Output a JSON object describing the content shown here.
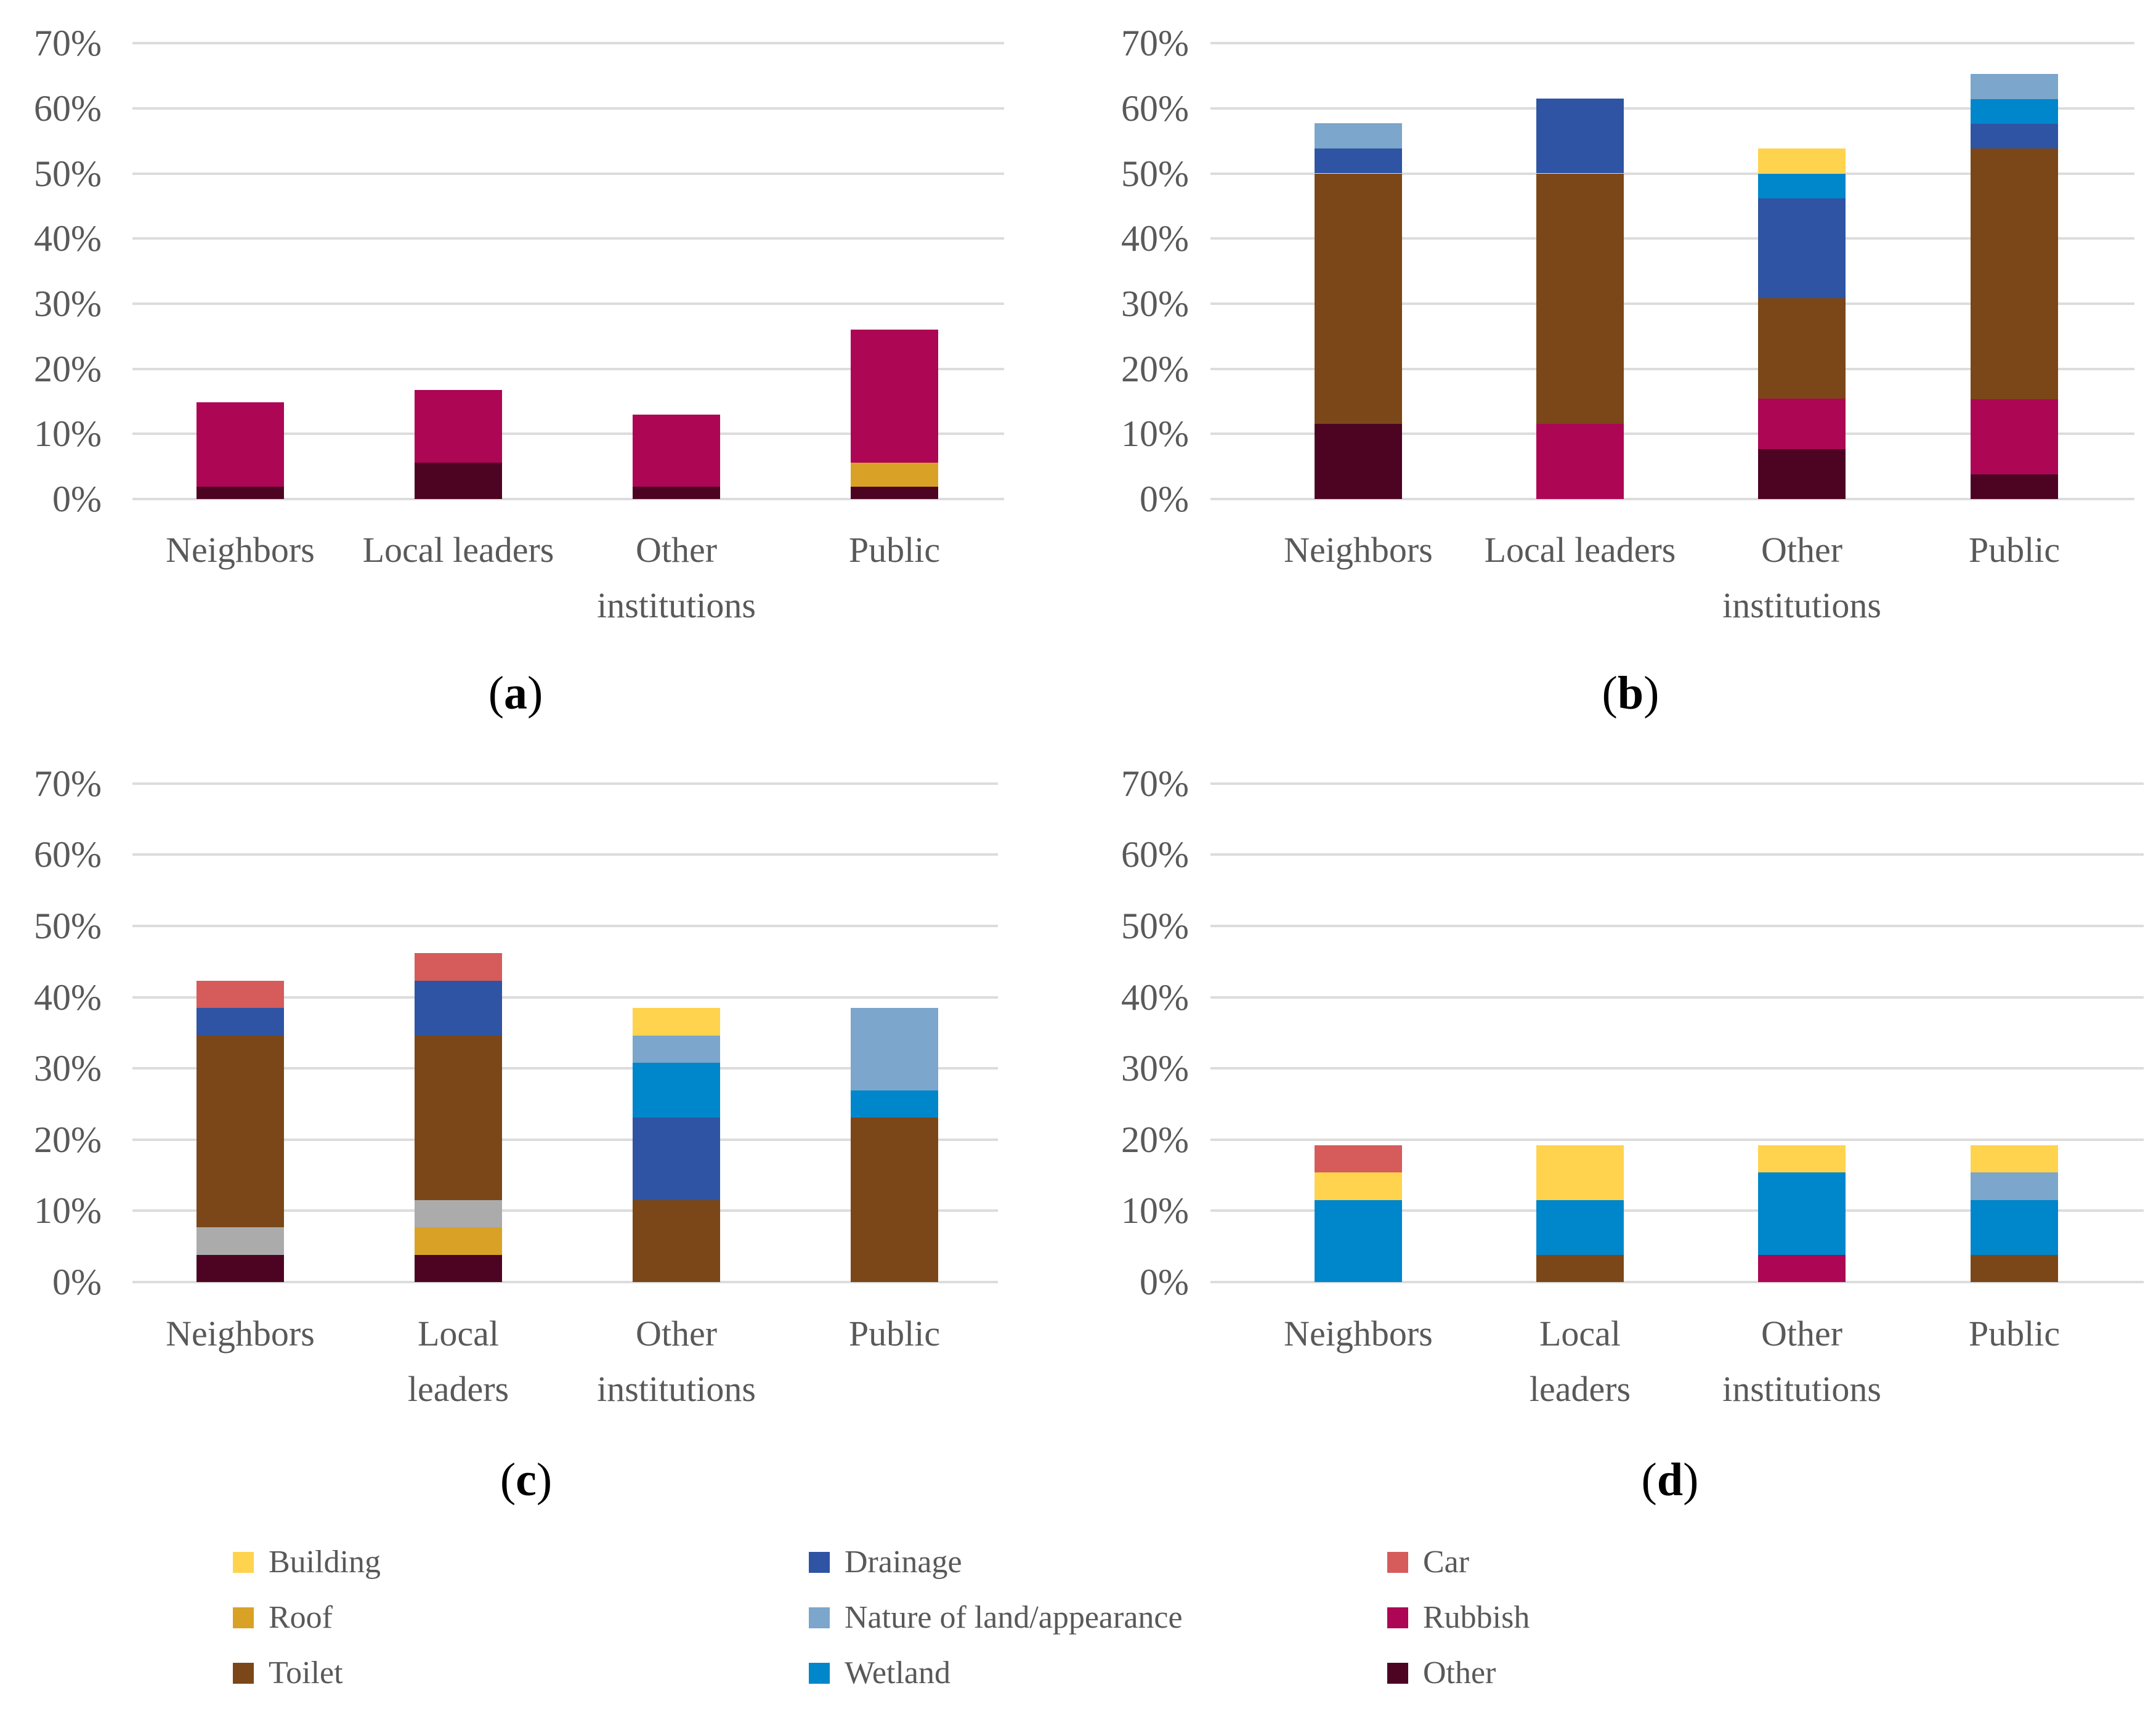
{
  "figure": {
    "background": "#FFFFFF",
    "text_color": "#595959",
    "gridline_color": "#DCDCDC",
    "y_tick_labels": [
      "0%",
      "10%",
      "20%",
      "30%",
      "40%",
      "50%",
      "60%",
      "70%"
    ]
  },
  "colors": {
    "Building": "#FFD34D",
    "Roof": "#D9A226",
    "Toilet": "#7B4718",
    "Drainage": "#2E54A3",
    "Nature of land/appearance": "#7CA6CB",
    "Wetland": "#0086CB",
    "Car": "#D65B5B",
    "Rubbish": "#AC0654",
    "Other": "#4C0422",
    "Unlabeled (gray)": "#ABABAB"
  },
  "chart_data": [
    {
      "id": "a",
      "type": "bar",
      "stacked": true,
      "caption_letter": "a",
      "ylim": [
        0,
        70
      ],
      "yticks_pct": [
        0,
        10,
        20,
        30,
        40,
        50,
        60,
        70
      ],
      "grid": true,
      "categories": [
        "Neighbors",
        "Local leaders",
        "Other institutions",
        "Public"
      ],
      "category_lines": [
        [
          "Neighbors"
        ],
        [
          "Local leaders"
        ],
        [
          "Other",
          "institutions"
        ],
        [
          "Public"
        ]
      ],
      "units": "percent, segments listed bottom to top",
      "bars": [
        {
          "category": "Neighbors",
          "segments": [
            {
              "label": "Other",
              "value": 1.9
            },
            {
              "label": "Rubbish",
              "value": 13.0
            }
          ]
        },
        {
          "category": "Local leaders",
          "segments": [
            {
              "label": "Other",
              "value": 5.6
            },
            {
              "label": "Rubbish",
              "value": 11.1
            }
          ]
        },
        {
          "category": "Other institutions",
          "segments": [
            {
              "label": "Other",
              "value": 1.9
            },
            {
              "label": "Rubbish",
              "value": 11.1
            }
          ]
        },
        {
          "category": "Public",
          "segments": [
            {
              "label": "Other",
              "value": 1.9
            },
            {
              "label": "Roof",
              "value": 3.7
            },
            {
              "label": "Rubbish",
              "value": 20.4
            }
          ]
        }
      ]
    },
    {
      "id": "b",
      "type": "bar",
      "stacked": true,
      "caption_letter": "b",
      "ylim": [
        0,
        70
      ],
      "yticks_pct": [
        0,
        10,
        20,
        30,
        40,
        50,
        60,
        70
      ],
      "grid": true,
      "categories": [
        "Neighbors",
        "Local leaders",
        "Other institutions",
        "Public"
      ],
      "category_lines": [
        [
          "Neighbors"
        ],
        [
          "Local leaders"
        ],
        [
          "Other",
          "institutions"
        ],
        [
          "Public"
        ]
      ],
      "units": "percent, segments listed bottom to top",
      "bars": [
        {
          "category": "Neighbors",
          "segments": [
            {
              "label": "Other",
              "value": 11.5
            },
            {
              "label": "Toilet",
              "value": 38.5
            },
            {
              "label": "Drainage",
              "value": 3.8
            },
            {
              "label": "Nature of land/appearance",
              "value": 3.9
            }
          ]
        },
        {
          "category": "Local leaders",
          "segments": [
            {
              "label": "Rubbish",
              "value": 11.5
            },
            {
              "label": "Toilet",
              "value": 38.5
            },
            {
              "label": "Drainage",
              "value": 11.5
            }
          ]
        },
        {
          "category": "Other institutions",
          "segments": [
            {
              "label": "Other",
              "value": 7.7
            },
            {
              "label": "Rubbish",
              "value": 7.7
            },
            {
              "label": "Toilet",
              "value": 15.4
            },
            {
              "label": "Drainage",
              "value": 15.4
            },
            {
              "label": "Wetland",
              "value": 3.8
            },
            {
              "label": "Building",
              "value": 3.8
            }
          ]
        },
        {
          "category": "Public",
          "segments": [
            {
              "label": "Other",
              "value": 3.8
            },
            {
              "label": "Rubbish",
              "value": 11.5
            },
            {
              "label": "Toilet",
              "value": 38.5
            },
            {
              "label": "Drainage",
              "value": 3.8
            },
            {
              "label": "Wetland",
              "value": 3.8
            },
            {
              "label": "Nature of land/appearance",
              "value": 3.9
            }
          ]
        }
      ]
    },
    {
      "id": "c",
      "type": "bar",
      "stacked": true,
      "caption_letter": "c",
      "ylim": [
        0,
        70
      ],
      "yticks_pct": [
        0,
        10,
        20,
        30,
        40,
        50,
        60,
        70
      ],
      "grid": true,
      "categories": [
        "Neighbors",
        "Local leaders",
        "Other institutions",
        "Public"
      ],
      "category_lines": [
        [
          "Neighbors"
        ],
        [
          "Local",
          "leaders"
        ],
        [
          "Other",
          "institutions"
        ],
        [
          "Public"
        ]
      ],
      "units": "percent, segments listed bottom to top",
      "bars": [
        {
          "category": "Neighbors",
          "segments": [
            {
              "label": "Other",
              "value": 3.8
            },
            {
              "label": "Unlabeled (gray)",
              "value": 3.9
            },
            {
              "label": "Toilet",
              "value": 26.9
            },
            {
              "label": "Drainage",
              "value": 3.9
            },
            {
              "label": "Car",
              "value": 3.8
            }
          ]
        },
        {
          "category": "Local leaders",
          "segments": [
            {
              "label": "Other",
              "value": 3.8
            },
            {
              "label": "Roof",
              "value": 3.9
            },
            {
              "label": "Unlabeled (gray)",
              "value": 3.8
            },
            {
              "label": "Toilet",
              "value": 23.1
            },
            {
              "label": "Drainage",
              "value": 7.7
            },
            {
              "label": "Car",
              "value": 3.9
            }
          ]
        },
        {
          "category": "Other institutions",
          "segments": [
            {
              "label": "Toilet",
              "value": 11.5
            },
            {
              "label": "Drainage",
              "value": 11.6
            },
            {
              "label": "Wetland",
              "value": 7.7
            },
            {
              "label": "Nature of land/appearance",
              "value": 3.8
            },
            {
              "label": "Building",
              "value": 3.9
            }
          ]
        },
        {
          "category": "Public",
          "segments": [
            {
              "label": "Toilet",
              "value": 23.1
            },
            {
              "label": "Wetland",
              "value": 3.8
            },
            {
              "label": "Nature of land/appearance",
              "value": 11.6
            }
          ]
        }
      ]
    },
    {
      "id": "d",
      "type": "bar",
      "stacked": true,
      "caption_letter": "d",
      "ylim": [
        0,
        70
      ],
      "yticks_pct": [
        0,
        10,
        20,
        30,
        40,
        50,
        60,
        70
      ],
      "grid": true,
      "categories": [
        "Neighbors",
        "Local leaders",
        "Other institutions",
        "Public"
      ],
      "category_lines": [
        [
          "Neighbors"
        ],
        [
          "Local",
          "leaders"
        ],
        [
          "Other",
          "institutions"
        ],
        [
          "Public"
        ]
      ],
      "units": "percent, segments listed bottom to top",
      "bars": [
        {
          "category": "Neighbors",
          "segments": [
            {
              "label": "Wetland",
              "value": 11.5
            },
            {
              "label": "Building",
              "value": 3.9
            },
            {
              "label": "Car",
              "value": 3.8
            }
          ]
        },
        {
          "category": "Local leaders",
          "segments": [
            {
              "label": "Toilet",
              "value": 3.8
            },
            {
              "label": "Wetland",
              "value": 7.7
            },
            {
              "label": "Building",
              "value": 7.7
            }
          ]
        },
        {
          "category": "Other institutions",
          "segments": [
            {
              "label": "Rubbish",
              "value": 3.8
            },
            {
              "label": "Wetland",
              "value": 11.6
            },
            {
              "label": "Building",
              "value": 3.8
            }
          ]
        },
        {
          "category": "Public",
          "segments": [
            {
              "label": "Toilet",
              "value": 3.8
            },
            {
              "label": "Wetland",
              "value": 7.7
            },
            {
              "label": "Nature of land/appearance",
              "value": 3.9
            },
            {
              "label": "Building",
              "value": 3.8
            }
          ]
        }
      ]
    }
  ],
  "legend": {
    "position": "bottom",
    "columns": [
      [
        "Building",
        "Roof",
        "Toilet"
      ],
      [
        "Drainage",
        "Nature of land/appearance",
        "Wetland"
      ],
      [
        "Car",
        "Rubbish",
        "Other"
      ]
    ]
  }
}
